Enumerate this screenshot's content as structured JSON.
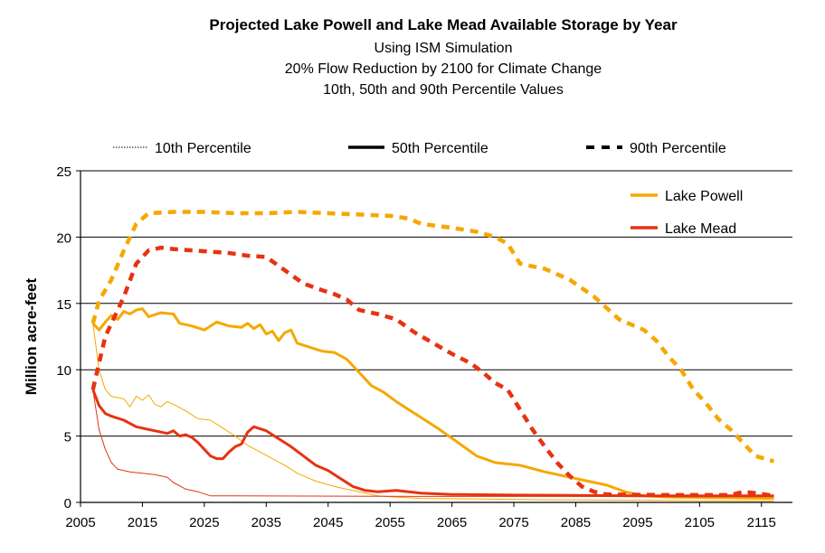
{
  "chart_data": {
    "type": "line",
    "title": "Projected Lake Powell and Lake Mead Available Storage by Year",
    "subtitles": [
      "Using ISM Simulation",
      "20% Flow Reduction by 2100 for Climate Change",
      "10th, 50th and 90th Percentile Values"
    ],
    "xlabel": "",
    "ylabel": "Million acre-feet",
    "xlim": [
      2005,
      2120
    ],
    "ylim": [
      0,
      25
    ],
    "xticks": [
      2005,
      2015,
      2025,
      2035,
      2045,
      2055,
      2065,
      2075,
      2085,
      2095,
      2105,
      2115
    ],
    "yticks": [
      0,
      5,
      10,
      15,
      20,
      25
    ],
    "grid": "horizontal",
    "percentile_legend": [
      {
        "label": "10th  Percentile",
        "style": "dotted"
      },
      {
        "label": "50th  Percentile",
        "style": "solid"
      },
      {
        "label": "90th  Percentile",
        "style": "dashed"
      }
    ],
    "lake_legend": [
      {
        "label": "Lake  Powell",
        "color": "#F5A800"
      },
      {
        "label": "Lake  Mead",
        "color": "#E63312"
      }
    ],
    "legend_position": "top-right",
    "series": [
      {
        "lake": "Lake  Powell",
        "percentile": "90th",
        "color": "#F5A800",
        "points": [
          [
            2007,
            13.5
          ],
          [
            2008,
            15.2
          ],
          [
            2010,
            16.8
          ],
          [
            2012,
            19
          ],
          [
            2014,
            21
          ],
          [
            2016,
            21.8
          ],
          [
            2020,
            21.9
          ],
          [
            2025,
            21.9
          ],
          [
            2030,
            21.8
          ],
          [
            2035,
            21.8
          ],
          [
            2040,
            21.9
          ],
          [
            2045,
            21.8
          ],
          [
            2050,
            21.7
          ],
          [
            2055,
            21.6
          ],
          [
            2058,
            21.4
          ],
          [
            2060,
            21
          ],
          [
            2065,
            20.7
          ],
          [
            2069,
            20.4
          ],
          [
            2072,
            20
          ],
          [
            2074,
            19.5
          ],
          [
            2076,
            18
          ],
          [
            2080,
            17.6
          ],
          [
            2084,
            16.8
          ],
          [
            2088,
            15.5
          ],
          [
            2092,
            13.8
          ],
          [
            2096,
            13
          ],
          [
            2098,
            12.2
          ],
          [
            2100,
            11
          ],
          [
            2102,
            10
          ],
          [
            2104,
            8.5
          ],
          [
            2106,
            7.5
          ],
          [
            2108,
            6.3
          ],
          [
            2110,
            5.5
          ],
          [
            2112,
            4.5
          ],
          [
            2114,
            3.5
          ],
          [
            2117,
            3.1
          ]
        ]
      },
      {
        "lake": "Lake  Powell",
        "percentile": "50th",
        "color": "#F5A800",
        "points": [
          [
            2007,
            13.5
          ],
          [
            2008,
            13
          ],
          [
            2009,
            13.6
          ],
          [
            2010,
            14.1
          ],
          [
            2011,
            13.8
          ],
          [
            2012,
            14.4
          ],
          [
            2013,
            14.2
          ],
          [
            2014,
            14.5
          ],
          [
            2015,
            14.6
          ],
          [
            2016,
            14
          ],
          [
            2018,
            14.3
          ],
          [
            2020,
            14.2
          ],
          [
            2021,
            13.5
          ],
          [
            2023,
            13.3
          ],
          [
            2025,
            13
          ],
          [
            2027,
            13.6
          ],
          [
            2029,
            13.3
          ],
          [
            2031,
            13.2
          ],
          [
            2032,
            13.5
          ],
          [
            2033,
            13.1
          ],
          [
            2034,
            13.4
          ],
          [
            2035,
            12.7
          ],
          [
            2036,
            12.9
          ],
          [
            2037,
            12.2
          ],
          [
            2038,
            12.8
          ],
          [
            2039,
            13
          ],
          [
            2040,
            12
          ],
          [
            2042,
            11.7
          ],
          [
            2044,
            11.4
          ],
          [
            2046,
            11.3
          ],
          [
            2048,
            10.8
          ],
          [
            2050,
            9.8
          ],
          [
            2052,
            8.8
          ],
          [
            2054,
            8.3
          ],
          [
            2056,
            7.6
          ],
          [
            2058,
            7
          ],
          [
            2060,
            6.4
          ],
          [
            2063,
            5.5
          ],
          [
            2066,
            4.5
          ],
          [
            2069,
            3.5
          ],
          [
            2072,
            3
          ],
          [
            2076,
            2.8
          ],
          [
            2080,
            2.3
          ],
          [
            2085,
            1.8
          ],
          [
            2090,
            1.3
          ],
          [
            2093,
            0.8
          ],
          [
            2096,
            0.5
          ],
          [
            2100,
            0.4
          ],
          [
            2110,
            0.35
          ],
          [
            2117,
            0.3
          ]
        ]
      },
      {
        "lake": "Lake  Powell",
        "percentile": "10th",
        "color": "#F5A800",
        "points": [
          [
            2007,
            13.5
          ],
          [
            2008,
            10
          ],
          [
            2009,
            8.5
          ],
          [
            2010,
            8
          ],
          [
            2012,
            7.8
          ],
          [
            2013,
            7.2
          ],
          [
            2014,
            8
          ],
          [
            2015,
            7.7
          ],
          [
            2016,
            8.1
          ],
          [
            2017,
            7.4
          ],
          [
            2018,
            7.2
          ],
          [
            2019,
            7.6
          ],
          [
            2020,
            7.4
          ],
          [
            2022,
            6.9
          ],
          [
            2024,
            6.3
          ],
          [
            2026,
            6.2
          ],
          [
            2028,
            5.6
          ],
          [
            2030,
            5
          ],
          [
            2032,
            4.3
          ],
          [
            2034,
            3.8
          ],
          [
            2036,
            3.3
          ],
          [
            2038,
            2.8
          ],
          [
            2040,
            2.2
          ],
          [
            2043,
            1.6
          ],
          [
            2046,
            1.2
          ],
          [
            2050,
            0.8
          ],
          [
            2053,
            0.5
          ],
          [
            2056,
            0.4
          ],
          [
            2060,
            0.3
          ],
          [
            2070,
            0.25
          ],
          [
            2080,
            0.2
          ],
          [
            2100,
            0.15
          ],
          [
            2117,
            0.1
          ]
        ]
      },
      {
        "lake": "Lake  Mead",
        "percentile": "90th",
        "color": "#E63312",
        "points": [
          [
            2007,
            8.5
          ],
          [
            2008,
            10.5
          ],
          [
            2009,
            12.5
          ],
          [
            2010,
            13.5
          ],
          [
            2012,
            15.5
          ],
          [
            2014,
            18
          ],
          [
            2016,
            19
          ],
          [
            2018,
            19.2
          ],
          [
            2020,
            19.1
          ],
          [
            2023,
            19
          ],
          [
            2026,
            18.9
          ],
          [
            2029,
            18.8
          ],
          [
            2032,
            18.6
          ],
          [
            2035,
            18.5
          ],
          [
            2038,
            17.5
          ],
          [
            2041,
            16.5
          ],
          [
            2044,
            16
          ],
          [
            2046,
            15.7
          ],
          [
            2048,
            15.3
          ],
          [
            2050,
            14.5
          ],
          [
            2053,
            14.2
          ],
          [
            2056,
            13.8
          ],
          [
            2059,
            12.8
          ],
          [
            2062,
            12
          ],
          [
            2065,
            11.2
          ],
          [
            2068,
            10.5
          ],
          [
            2070,
            9.8
          ],
          [
            2072,
            9
          ],
          [
            2074,
            8.5
          ],
          [
            2076,
            7
          ],
          [
            2078,
            5.5
          ],
          [
            2080,
            4.2
          ],
          [
            2082,
            3
          ],
          [
            2084,
            2
          ],
          [
            2086,
            1.2
          ],
          [
            2088,
            0.8
          ],
          [
            2090,
            0.6
          ],
          [
            2100,
            0.55
          ],
          [
            2110,
            0.55
          ],
          [
            2112,
            0.8
          ],
          [
            2114,
            0.7
          ],
          [
            2117,
            0.5
          ]
        ]
      },
      {
        "lake": "Lake  Mead",
        "percentile": "50th",
        "color": "#E63312",
        "points": [
          [
            2007,
            8.5
          ],
          [
            2008,
            7.3
          ],
          [
            2009,
            6.7
          ],
          [
            2010,
            6.5
          ],
          [
            2012,
            6.2
          ],
          [
            2014,
            5.7
          ],
          [
            2016,
            5.5
          ],
          [
            2018,
            5.3
          ],
          [
            2019,
            5.2
          ],
          [
            2020,
            5.4
          ],
          [
            2021,
            5
          ],
          [
            2022,
            5.1
          ],
          [
            2023,
            4.9
          ],
          [
            2024,
            4.5
          ],
          [
            2025,
            4
          ],
          [
            2026,
            3.5
          ],
          [
            2027,
            3.3
          ],
          [
            2028,
            3.3
          ],
          [
            2029,
            3.8
          ],
          [
            2030,
            4.2
          ],
          [
            2031,
            4.4
          ],
          [
            2032,
            5.3
          ],
          [
            2033,
            5.7
          ],
          [
            2035,
            5.4
          ],
          [
            2037,
            4.8
          ],
          [
            2039,
            4.2
          ],
          [
            2041,
            3.5
          ],
          [
            2043,
            2.8
          ],
          [
            2045,
            2.4
          ],
          [
            2047,
            1.8
          ],
          [
            2049,
            1.2
          ],
          [
            2051,
            0.9
          ],
          [
            2053,
            0.8
          ],
          [
            2056,
            0.9
          ],
          [
            2060,
            0.7
          ],
          [
            2065,
            0.6
          ],
          [
            2075,
            0.55
          ],
          [
            2095,
            0.5
          ],
          [
            2117,
            0.5
          ]
        ]
      },
      {
        "lake": "Lake  Mead",
        "percentile": "10th",
        "color": "#E63312",
        "points": [
          [
            2007,
            8.5
          ],
          [
            2008,
            5.5
          ],
          [
            2009,
            4
          ],
          [
            2010,
            3
          ],
          [
            2011,
            2.5
          ],
          [
            2013,
            2.3
          ],
          [
            2015,
            2.2
          ],
          [
            2017,
            2.1
          ],
          [
            2019,
            1.9
          ],
          [
            2020,
            1.5
          ],
          [
            2022,
            1
          ],
          [
            2024,
            0.8
          ],
          [
            2026,
            0.5
          ],
          [
            2030,
            0.5
          ],
          [
            2060,
            0.45
          ],
          [
            2090,
            0.45
          ],
          [
            2117,
            0.45
          ]
        ]
      }
    ]
  }
}
